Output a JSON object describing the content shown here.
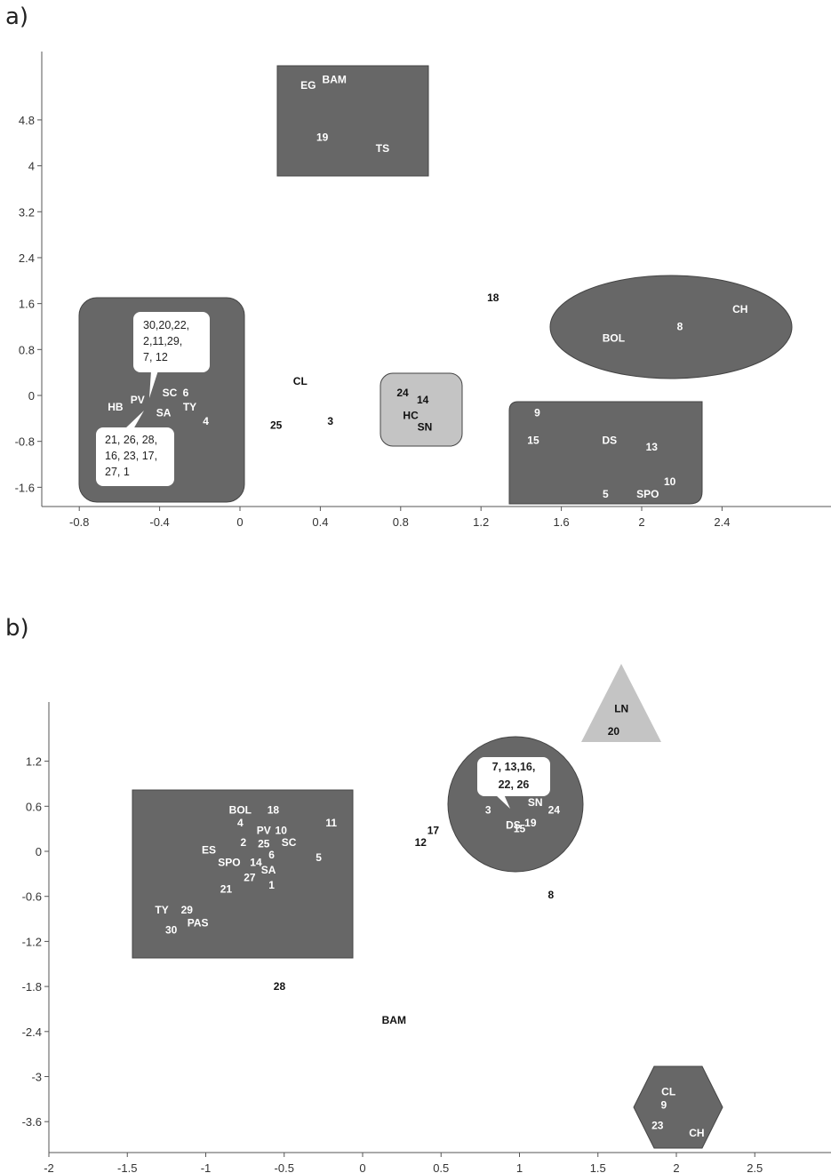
{
  "panel_a": {
    "label": "a)"
  },
  "panel_b": {
    "label": "b)"
  },
  "colors": {
    "dark_group": "#676767",
    "light_group": "#c4c4c4",
    "axis": "#555555"
  },
  "chart_data": [
    {
      "type": "scatter",
      "panel": "a)",
      "xlim": [
        -1.0,
        2.95
      ],
      "ylim": [
        -2.0,
        6.0
      ],
      "x_ticks": [
        "-0.8",
        "-0.4",
        "0",
        "0.4",
        "0.8",
        "1.2",
        "1.6",
        "2",
        "2.4"
      ],
      "y_ticks": [
        "-1.6",
        "-0.8",
        "0",
        "0.8",
        "1.6",
        "2.4",
        "3.2",
        "4",
        "4.8"
      ],
      "points": [
        {
          "label": "EG",
          "x": 0.34,
          "y": 5.4,
          "group": "dark"
        },
        {
          "label": "BAM",
          "x": 0.47,
          "y": 5.5,
          "group": "dark"
        },
        {
          "label": "19",
          "x": 0.41,
          "y": 4.5,
          "group": "dark"
        },
        {
          "label": "TS",
          "x": 0.71,
          "y": 4.3,
          "group": "dark"
        },
        {
          "label": "18",
          "x": 1.26,
          "y": 1.7,
          "group": "none"
        },
        {
          "label": "CH",
          "x": 2.49,
          "y": 1.5,
          "group": "dark"
        },
        {
          "label": "8",
          "x": 2.19,
          "y": 1.2,
          "group": "dark"
        },
        {
          "label": "BOL",
          "x": 1.86,
          "y": 1.0,
          "group": "dark"
        },
        {
          "label": "CL",
          "x": 0.3,
          "y": 0.25,
          "group": "none"
        },
        {
          "label": "24",
          "x": 0.81,
          "y": 0.05,
          "group": "light"
        },
        {
          "label": "14",
          "x": 0.91,
          "y": -0.08,
          "group": "light"
        },
        {
          "label": "HC",
          "x": 0.85,
          "y": -0.35,
          "group": "light"
        },
        {
          "label": "SN",
          "x": 0.92,
          "y": -0.55,
          "group": "light"
        },
        {
          "label": "3",
          "x": 0.45,
          "y": -0.45,
          "group": "none"
        },
        {
          "label": "25",
          "x": 0.18,
          "y": -0.52,
          "group": "none"
        },
        {
          "label": "HB",
          "x": -0.62,
          "y": -0.2,
          "group": "dark"
        },
        {
          "label": "PV",
          "x": -0.51,
          "y": -0.08,
          "group": "dark"
        },
        {
          "label": "SC",
          "x": -0.35,
          "y": 0.05,
          "group": "dark"
        },
        {
          "label": "6",
          "x": -0.27,
          "y": 0.05,
          "group": "dark"
        },
        {
          "label": "SA",
          "x": -0.38,
          "y": -0.3,
          "group": "dark"
        },
        {
          "label": "TY",
          "x": -0.25,
          "y": -0.2,
          "group": "dark"
        },
        {
          "label": "4",
          "x": -0.17,
          "y": -0.45,
          "group": "dark"
        },
        {
          "label": "9",
          "x": 1.48,
          "y": -0.3,
          "group": "dark"
        },
        {
          "label": "15",
          "x": 1.46,
          "y": -0.78,
          "group": "dark"
        },
        {
          "label": "DS",
          "x": 1.84,
          "y": -0.78,
          "group": "dark"
        },
        {
          "label": "13",
          "x": 2.05,
          "y": -0.9,
          "group": "dark"
        },
        {
          "label": "10",
          "x": 2.14,
          "y": -1.5,
          "group": "dark"
        },
        {
          "label": "5",
          "x": 1.82,
          "y": -1.72,
          "group": "dark"
        },
        {
          "label": "SPO",
          "x": 2.03,
          "y": -1.72,
          "group": "dark"
        }
      ],
      "callouts": [
        {
          "lines": [
            "30,20,22,",
            "2,11,29,",
            "7, 12"
          ]
        },
        {
          "lines": [
            "21, 26, 28,",
            "16, 23, 17,",
            "27, 1"
          ]
        }
      ]
    },
    {
      "type": "scatter",
      "panel": "b)",
      "xlim": [
        -2.0,
        3.0
      ],
      "ylim": [
        -4.0,
        2.0
      ],
      "x_ticks": [
        "-2",
        "-1.5",
        "-1",
        "-0.5",
        "0",
        "0.5",
        "1",
        "1.5",
        "2",
        "2.5"
      ],
      "y_ticks": [
        "-3.6",
        "-3",
        "-2.4",
        "-1.8",
        "-1.2",
        "-0.6",
        "0",
        "0.6",
        "1.2"
      ],
      "points": [
        {
          "label": "LN",
          "x": 1.65,
          "y": 1.9,
          "group": "light"
        },
        {
          "label": "20",
          "x": 1.6,
          "y": 1.6,
          "group": "light"
        },
        {
          "label": "3",
          "x": 0.8,
          "y": 0.55,
          "group": "dark"
        },
        {
          "label": "SN",
          "x": 1.1,
          "y": 0.65,
          "group": "dark"
        },
        {
          "label": "24",
          "x": 1.22,
          "y": 0.55,
          "group": "dark"
        },
        {
          "label": "DS",
          "x": 0.96,
          "y": 0.35,
          "group": "dark"
        },
        {
          "label": "19",
          "x": 1.07,
          "y": 0.38,
          "group": "dark"
        },
        {
          "label": "15",
          "x": 1.0,
          "y": 0.3,
          "group": "dark"
        },
        {
          "label": "17",
          "x": 0.45,
          "y": 0.28,
          "group": "none"
        },
        {
          "label": "12",
          "x": 0.37,
          "y": 0.12,
          "group": "none"
        },
        {
          "label": "8",
          "x": 1.2,
          "y": -0.58,
          "group": "none"
        },
        {
          "label": "BOL",
          "x": -0.78,
          "y": 0.55,
          "group": "dark"
        },
        {
          "label": "18",
          "x": -0.57,
          "y": 0.55,
          "group": "dark"
        },
        {
          "label": "11",
          "x": -0.2,
          "y": 0.38,
          "group": "dark"
        },
        {
          "label": "4",
          "x": -0.78,
          "y": 0.38,
          "group": "dark"
        },
        {
          "label": "PV",
          "x": -0.63,
          "y": 0.28,
          "group": "dark"
        },
        {
          "label": "10",
          "x": -0.52,
          "y": 0.28,
          "group": "dark"
        },
        {
          "label": "SC",
          "x": -0.47,
          "y": 0.12,
          "group": "dark"
        },
        {
          "label": "2",
          "x": -0.76,
          "y": 0.12,
          "group": "dark"
        },
        {
          "label": "25",
          "x": -0.63,
          "y": 0.1,
          "group": "dark"
        },
        {
          "label": "ES",
          "x": -0.98,
          "y": 0.02,
          "group": "dark"
        },
        {
          "label": "6",
          "x": -0.58,
          "y": -0.05,
          "group": "dark"
        },
        {
          "label": "5",
          "x": -0.28,
          "y": -0.08,
          "group": "dark"
        },
        {
          "label": "SPO",
          "x": -0.85,
          "y": -0.15,
          "group": "dark"
        },
        {
          "label": "14",
          "x": -0.68,
          "y": -0.15,
          "group": "dark"
        },
        {
          "label": "SA",
          "x": -0.6,
          "y": -0.25,
          "group": "dark"
        },
        {
          "label": "27",
          "x": -0.72,
          "y": -0.35,
          "group": "dark"
        },
        {
          "label": "1",
          "x": -0.58,
          "y": -0.45,
          "group": "dark"
        },
        {
          "label": "21",
          "x": -0.87,
          "y": -0.5,
          "group": "dark"
        },
        {
          "label": "TY",
          "x": -1.28,
          "y": -0.78,
          "group": "dark"
        },
        {
          "label": "29",
          "x": -1.12,
          "y": -0.78,
          "group": "dark"
        },
        {
          "label": "PAS",
          "x": -1.05,
          "y": -0.95,
          "group": "dark"
        },
        {
          "label": "30",
          "x": -1.22,
          "y": -1.05,
          "group": "dark"
        },
        {
          "label": "28",
          "x": -0.53,
          "y": -1.8,
          "group": "none"
        },
        {
          "label": "BAM",
          "x": 0.2,
          "y": -2.25,
          "group": "none"
        },
        {
          "label": "CL",
          "x": 1.95,
          "y": -3.2,
          "group": "dark"
        },
        {
          "label": "9",
          "x": 1.92,
          "y": -3.38,
          "group": "dark"
        },
        {
          "label": "23",
          "x": 1.88,
          "y": -3.65,
          "group": "dark"
        },
        {
          "label": "CH",
          "x": 2.13,
          "y": -3.75,
          "group": "dark"
        }
      ],
      "callouts": [
        {
          "lines": [
            "7, 13,16,",
            "22, 26"
          ]
        }
      ]
    }
  ]
}
